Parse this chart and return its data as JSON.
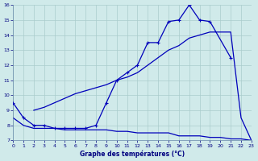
{
  "xlabel": "Graphe des températures (°C)",
  "bg_color": "#d0eaea",
  "grid_color": "#aacccc",
  "line_color": "#0000bb",
  "curve1_x": [
    0,
    1,
    2,
    3,
    4,
    5,
    6,
    7,
    8,
    9,
    10,
    11,
    12,
    13,
    14,
    15,
    16,
    17,
    18,
    19,
    21
  ],
  "curve1_y": [
    9.5,
    8.5,
    8.0,
    8.0,
    7.8,
    7.8,
    7.8,
    7.8,
    8.0,
    9.5,
    11.0,
    11.5,
    12.0,
    13.5,
    13.5,
    14.9,
    15.0,
    16.0,
    15.0,
    14.9,
    12.5
  ],
  "curve2_x": [
    2,
    3,
    4,
    5,
    6,
    7,
    8,
    9,
    10,
    11,
    12,
    13,
    14,
    15,
    16,
    17,
    18,
    19,
    20,
    21,
    22,
    23
  ],
  "curve2_y": [
    9.0,
    9.2,
    9.5,
    9.8,
    10.1,
    10.3,
    10.5,
    10.7,
    11.0,
    11.2,
    11.5,
    12.0,
    12.5,
    13.0,
    13.3,
    13.8,
    14.0,
    14.2,
    14.2,
    14.2,
    8.5,
    7.0
  ],
  "curve3_x": [
    0,
    1,
    2,
    3,
    4,
    5,
    6,
    7,
    8,
    9,
    10,
    11,
    12,
    13,
    14,
    15,
    16,
    17,
    18,
    19,
    20,
    21,
    22,
    23
  ],
  "curve3_y": [
    8.5,
    8.0,
    7.8,
    7.8,
    7.8,
    7.7,
    7.7,
    7.7,
    7.7,
    7.7,
    7.6,
    7.6,
    7.5,
    7.5,
    7.5,
    7.5,
    7.3,
    7.3,
    7.3,
    7.2,
    7.2,
    7.1,
    7.1,
    7.0
  ],
  "ylim": [
    7,
    16
  ],
  "xlim": [
    0,
    23
  ],
  "yticks": [
    7,
    8,
    9,
    10,
    11,
    12,
    13,
    14,
    15,
    16
  ],
  "xticks": [
    0,
    1,
    2,
    3,
    4,
    5,
    6,
    7,
    8,
    9,
    10,
    11,
    12,
    13,
    14,
    15,
    16,
    17,
    18,
    19,
    20,
    21,
    22,
    23
  ]
}
